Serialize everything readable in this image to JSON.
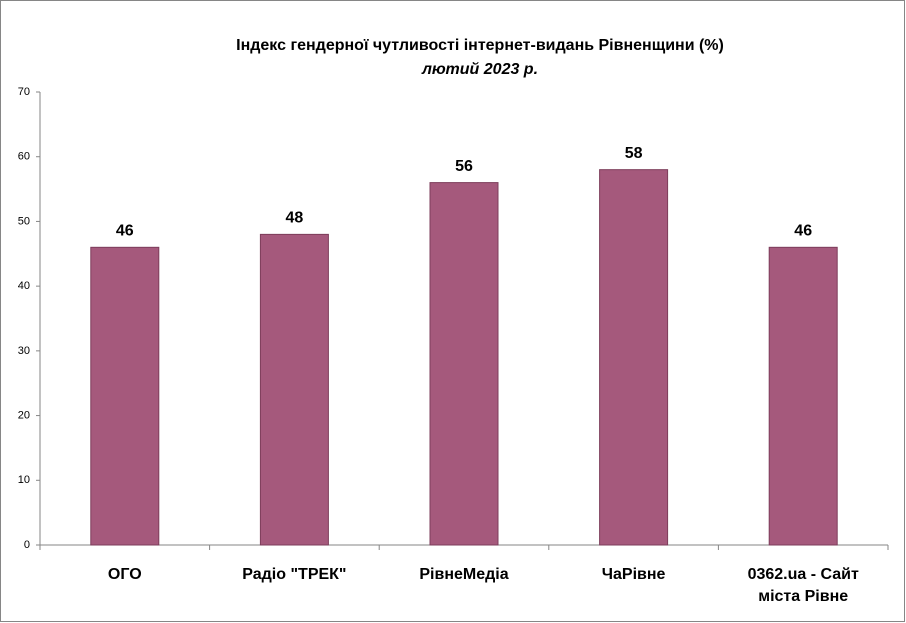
{
  "chart_data": {
    "type": "bar",
    "title": "Індекс гендерної чутливості інтернет-видань Рівненщини (%)",
    "subtitle": "лютий 2023 р.",
    "categories": [
      "ОГО",
      "Радіо \"ТРЕК\"",
      "РівнеМедіа",
      "ЧаРівне",
      "0362.ua - Сайт міста Рівне"
    ],
    "values": [
      46,
      48,
      56,
      58,
      46
    ],
    "color": "#a5597c",
    "ylim": [
      0,
      70
    ],
    "yticks": [
      0,
      10,
      20,
      30,
      40,
      50,
      60,
      70
    ],
    "grid": false
  }
}
